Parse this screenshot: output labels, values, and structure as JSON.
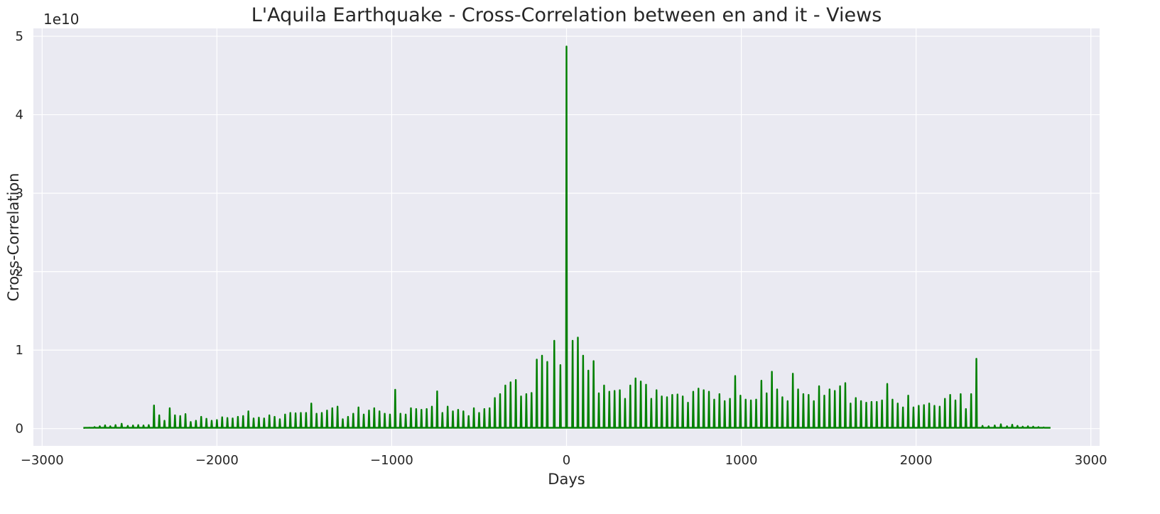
{
  "chart_data": {
    "type": "line",
    "title": "L'Aquila Earthquake - Cross-Correlation between en and it - Views",
    "xlabel": "Days",
    "ylabel": "Cross-Correlation",
    "y_offset_label": "1e10",
    "y_multiplier": 10000000000,
    "xlim": [
      -3050,
      3050
    ],
    "ylim": [
      -0.22,
      5.1
    ],
    "x_ticks": [
      -3000,
      -2000,
      -1000,
      0,
      1000,
      2000,
      3000
    ],
    "x_tick_labels": [
      "−3000",
      "−2000",
      "−1000",
      "0",
      "1000",
      "2000",
      "3000"
    ],
    "y_ticks": [
      0,
      1,
      2,
      3,
      4,
      5
    ],
    "y_tick_labels": [
      "0",
      "1",
      "2",
      "3",
      "4",
      "5"
    ],
    "grid": true,
    "background": "#EAEAF2",
    "grid_color": "#FFFFFF",
    "series": [
      {
        "color": "#008000",
        "baseline": 0.01,
        "peaks": [
          [
            -2760,
            0.08
          ],
          [
            -2730,
            0.12
          ],
          [
            -2700,
            0.2
          ],
          [
            -2670,
            0.3
          ],
          [
            -2640,
            0.42
          ],
          [
            -2610,
            0.3
          ],
          [
            -2580,
            0.45
          ],
          [
            -2545,
            0.62
          ],
          [
            -2510,
            0.35
          ],
          [
            -2480,
            0.4
          ],
          [
            -2450,
            0.45
          ],
          [
            -2420,
            0.4
          ],
          [
            -2390,
            0.45
          ],
          [
            -2360,
            2.95
          ],
          [
            -2330,
            1.7
          ],
          [
            -2300,
            1.0
          ],
          [
            -2270,
            2.6
          ],
          [
            -2240,
            1.7
          ],
          [
            -2210,
            1.6
          ],
          [
            -2180,
            1.85
          ],
          [
            -2150,
            0.85
          ],
          [
            -2120,
            1.0
          ],
          [
            -2090,
            1.5
          ],
          [
            -2060,
            1.25
          ],
          [
            -2030,
            1.0
          ],
          [
            -2000,
            1.1
          ],
          [
            -1970,
            1.45
          ],
          [
            -1940,
            1.35
          ],
          [
            -1910,
            1.3
          ],
          [
            -1880,
            1.5
          ],
          [
            -1850,
            1.6
          ],
          [
            -1820,
            2.2
          ],
          [
            -1790,
            1.3
          ],
          [
            -1760,
            1.4
          ],
          [
            -1730,
            1.3
          ],
          [
            -1700,
            1.7
          ],
          [
            -1670,
            1.5
          ],
          [
            -1640,
            1.2
          ],
          [
            -1610,
            1.8
          ],
          [
            -1580,
            2.0
          ],
          [
            -1550,
            1.95
          ],
          [
            -1520,
            2.0
          ],
          [
            -1490,
            2.0
          ],
          [
            -1460,
            3.2
          ],
          [
            -1430,
            1.9
          ],
          [
            -1400,
            2.0
          ],
          [
            -1370,
            2.3
          ],
          [
            -1340,
            2.6
          ],
          [
            -1310,
            2.8
          ],
          [
            -1280,
            1.2
          ],
          [
            -1250,
            1.5
          ],
          [
            -1220,
            1.9
          ],
          [
            -1190,
            2.7
          ],
          [
            -1160,
            1.8
          ],
          [
            -1130,
            2.3
          ],
          [
            -1100,
            2.6
          ],
          [
            -1070,
            2.2
          ],
          [
            -1040,
            1.9
          ],
          [
            -1010,
            1.8
          ],
          [
            -980,
            4.95
          ],
          [
            -950,
            1.9
          ],
          [
            -920,
            1.8
          ],
          [
            -890,
            2.6
          ],
          [
            -860,
            2.5
          ],
          [
            -830,
            2.4
          ],
          [
            -800,
            2.5
          ],
          [
            -770,
            2.8
          ],
          [
            -740,
            4.75
          ],
          [
            -710,
            2.0
          ],
          [
            -680,
            2.8
          ],
          [
            -650,
            2.2
          ],
          [
            -620,
            2.4
          ],
          [
            -590,
            2.2
          ],
          [
            -560,
            1.6
          ],
          [
            -530,
            2.6
          ],
          [
            -500,
            2.0
          ],
          [
            -470,
            2.5
          ],
          [
            -440,
            2.6
          ],
          [
            -410,
            3.9
          ],
          [
            -380,
            4.4
          ],
          [
            -350,
            5.5
          ],
          [
            -320,
            5.9
          ],
          [
            -290,
            6.2
          ],
          [
            -260,
            4.1
          ],
          [
            -230,
            4.4
          ],
          [
            -200,
            4.55
          ],
          [
            -170,
            8.8
          ],
          [
            -140,
            9.3
          ],
          [
            -110,
            8.5
          ],
          [
            -70,
            11.2
          ],
          [
            -35,
            8.1
          ],
          [
            0,
            48.7
          ],
          [
            35,
            11.2
          ],
          [
            65,
            11.6
          ],
          [
            95,
            9.3
          ],
          [
            125,
            7.4
          ],
          [
            155,
            8.6
          ],
          [
            185,
            4.5
          ],
          [
            215,
            5.5
          ],
          [
            245,
            4.7
          ],
          [
            275,
            4.8
          ],
          [
            305,
            4.9
          ],
          [
            335,
            3.8
          ],
          [
            365,
            5.5
          ],
          [
            395,
            6.4
          ],
          [
            425,
            6.0
          ],
          [
            455,
            5.6
          ],
          [
            485,
            3.8
          ],
          [
            515,
            4.9
          ],
          [
            545,
            4.1
          ],
          [
            575,
            4.0
          ],
          [
            605,
            4.3
          ],
          [
            635,
            4.35
          ],
          [
            665,
            4.1
          ],
          [
            695,
            3.3
          ],
          [
            725,
            4.7
          ],
          [
            755,
            5.1
          ],
          [
            785,
            4.9
          ],
          [
            815,
            4.7
          ],
          [
            845,
            3.7
          ],
          [
            875,
            4.4
          ],
          [
            905,
            3.5
          ],
          [
            935,
            3.8
          ],
          [
            965,
            6.7
          ],
          [
            995,
            4.2
          ],
          [
            1025,
            3.7
          ],
          [
            1055,
            3.6
          ],
          [
            1085,
            3.7
          ],
          [
            1115,
            6.1
          ],
          [
            1145,
            4.5
          ],
          [
            1175,
            7.25
          ],
          [
            1205,
            5.0
          ],
          [
            1235,
            4.0
          ],
          [
            1265,
            3.5
          ],
          [
            1295,
            7.0
          ],
          [
            1325,
            5.0
          ],
          [
            1355,
            4.4
          ],
          [
            1385,
            4.3
          ],
          [
            1415,
            3.5
          ],
          [
            1445,
            5.4
          ],
          [
            1475,
            4.2
          ],
          [
            1505,
            5.0
          ],
          [
            1535,
            4.8
          ],
          [
            1565,
            5.4
          ],
          [
            1595,
            5.8
          ],
          [
            1625,
            3.2
          ],
          [
            1655,
            3.9
          ],
          [
            1685,
            3.5
          ],
          [
            1715,
            3.3
          ],
          [
            1745,
            3.4
          ],
          [
            1775,
            3.4
          ],
          [
            1805,
            3.6
          ],
          [
            1835,
            5.7
          ],
          [
            1865,
            3.7
          ],
          [
            1895,
            3.2
          ],
          [
            1925,
            2.7
          ],
          [
            1955,
            4.2
          ],
          [
            1985,
            2.7
          ],
          [
            2015,
            2.9
          ],
          [
            2045,
            3.0
          ],
          [
            2075,
            3.2
          ],
          [
            2105,
            2.9
          ],
          [
            2135,
            2.8
          ],
          [
            2165,
            3.8
          ],
          [
            2195,
            4.3
          ],
          [
            2225,
            3.6
          ],
          [
            2255,
            4.4
          ],
          [
            2285,
            2.5
          ],
          [
            2315,
            4.4
          ],
          [
            2345,
            8.9
          ],
          [
            2380,
            0.35
          ],
          [
            2415,
            0.3
          ],
          [
            2450,
            0.4
          ],
          [
            2485,
            0.55
          ],
          [
            2520,
            0.3
          ],
          [
            2550,
            0.5
          ],
          [
            2580,
            0.35
          ],
          [
            2610,
            0.25
          ],
          [
            2640,
            0.3
          ],
          [
            2670,
            0.25
          ],
          [
            2700,
            0.2
          ],
          [
            2730,
            0.15
          ],
          [
            2760,
            0.1
          ]
        ]
      }
    ]
  }
}
